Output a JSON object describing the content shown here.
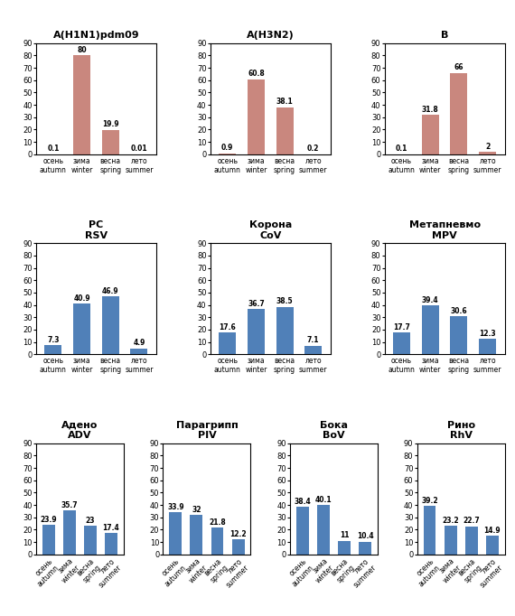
{
  "chart_data": [
    {
      "type": "bar",
      "title": "A(H1N1)pdm09",
      "categories": [
        "осень\nautumn",
        "зима\nwinter",
        "весна\nspring",
        "лето\nsummer"
      ],
      "values": [
        0.1,
        80,
        19.9,
        0.01
      ],
      "color": "#c9877e",
      "ylim": [
        0,
        90
      ],
      "yticks": [
        0,
        10,
        20,
        30,
        40,
        50,
        60,
        70,
        80,
        90
      ],
      "data_labels": true
    },
    {
      "type": "bar",
      "title": "A(H3N2)",
      "categories": [
        "осень\nautumn",
        "зима\nwinter",
        "весна\nspring",
        "лето\nsummer"
      ],
      "values": [
        0.9,
        60.8,
        38.1,
        0.2
      ],
      "color": "#c9877e",
      "ylim": [
        0,
        90
      ],
      "yticks": [
        0,
        10,
        20,
        30,
        40,
        50,
        60,
        70,
        80,
        90
      ],
      "data_labels": true
    },
    {
      "type": "bar",
      "title": "B",
      "categories": [
        "осень\nautumn",
        "зима\nwinter",
        "весна\nspring",
        "лето\nsummer"
      ],
      "values": [
        0.1,
        31.8,
        66,
        2
      ],
      "color": "#c9877e",
      "ylim": [
        0,
        90
      ],
      "yticks": [
        0,
        10,
        20,
        30,
        40,
        50,
        60,
        70,
        80,
        90
      ],
      "data_labels": true
    },
    {
      "type": "bar",
      "title": "PC\nRSV",
      "categories": [
        "осень\nautumn",
        "зима\nwinter",
        "весна\nspring",
        "лето\nsummer"
      ],
      "values": [
        7.3,
        40.9,
        46.9,
        4.9
      ],
      "color": "#5080b8",
      "ylim": [
        0,
        90
      ],
      "yticks": [
        0,
        10,
        20,
        30,
        40,
        50,
        60,
        70,
        80,
        90
      ],
      "data_labels": true
    },
    {
      "type": "bar",
      "title": "Корона\nCoV",
      "categories": [
        "осень\nautumn",
        "зима\nwinter",
        "весна\nspring",
        "лето\nsummer"
      ],
      "values": [
        17.6,
        36.7,
        38.5,
        7.1
      ],
      "color": "#5080b8",
      "ylim": [
        0,
        90
      ],
      "yticks": [
        0,
        10,
        20,
        30,
        40,
        50,
        60,
        70,
        80,
        90
      ],
      "data_labels": true
    },
    {
      "type": "bar",
      "title": "Метапневмо\nMPV",
      "categories": [
        "осень\nautumn",
        "зима\nwinter",
        "весна\nspring",
        "лето\nsummer"
      ],
      "values": [
        17.7,
        39.4,
        30.6,
        12.3
      ],
      "color": "#5080b8",
      "ylim": [
        0,
        90
      ],
      "yticks": [
        0,
        10,
        20,
        30,
        40,
        50,
        60,
        70,
        80,
        90
      ],
      "data_labels": true
    },
    {
      "type": "bar",
      "title": "Адено\nADV",
      "categories": [
        "осень\nautumn",
        "зима\nwinter",
        "весна\nspring",
        "лето\nsummer"
      ],
      "values": [
        23.9,
        35.7,
        23,
        17.4
      ],
      "color": "#5080b8",
      "ylim": [
        0,
        90
      ],
      "yticks": [
        0,
        10,
        20,
        30,
        40,
        50,
        60,
        70,
        80,
        90
      ],
      "data_labels": true
    },
    {
      "type": "bar",
      "title": "Парагрипп\nPIV",
      "categories": [
        "осень\nautumn",
        "зима\nwinter",
        "весна\nspring",
        "лето\nsummer"
      ],
      "values": [
        33.9,
        32,
        21.8,
        12.2
      ],
      "color": "#5080b8",
      "ylim": [
        0,
        90
      ],
      "yticks": [
        0,
        10,
        20,
        30,
        40,
        50,
        60,
        70,
        80,
        90
      ],
      "data_labels": true
    },
    {
      "type": "bar",
      "title": "Бока\nBoV",
      "categories": [
        "осень\nautumn",
        "зима\nwinter",
        "весна\nspring",
        "лето\nsummer"
      ],
      "values": [
        38.4,
        40.1,
        11,
        10.4
      ],
      "color": "#5080b8",
      "ylim": [
        0,
        90
      ],
      "yticks": [
        0,
        10,
        20,
        30,
        40,
        50,
        60,
        70,
        80,
        90
      ],
      "data_labels": true
    },
    {
      "type": "bar",
      "title": "Рино\nRhV",
      "categories": [
        "осень\nautumn",
        "зима\nwinter",
        "весна\nspring",
        "лето\nsummer"
      ],
      "values": [
        39.2,
        23.2,
        22.7,
        14.9
      ],
      "color": "#5080b8",
      "ylim": [
        0,
        90
      ],
      "yticks": [
        0,
        10,
        20,
        30,
        40,
        50,
        60,
        70,
        80,
        90
      ],
      "data_labels": true
    }
  ]
}
